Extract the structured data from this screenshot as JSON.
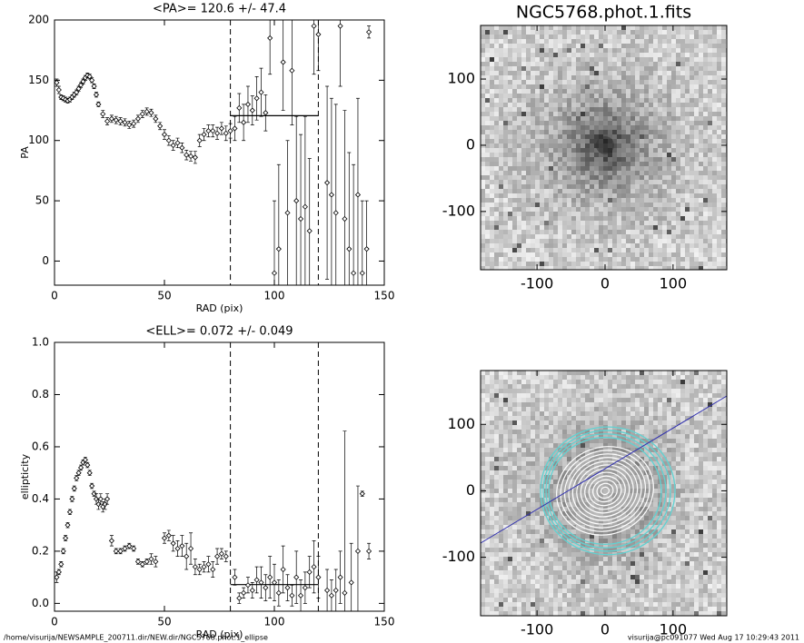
{
  "chart_data": [
    {
      "type": "scatter",
      "title": "<PA>= 120.6 +/-  47.4",
      "x_label": "RAD (pix)",
      "y_label": "PA",
      "xlim": [
        0,
        150
      ],
      "ylim": [
        -20,
        200
      ],
      "xticks": [
        0,
        50,
        100,
        150
      ],
      "yticks": [
        0,
        50,
        100,
        150,
        200
      ],
      "vlines": [
        80,
        120
      ],
      "mean": 120.6,
      "x": [
        1,
        2,
        3,
        4,
        5,
        6,
        7,
        8,
        9,
        10,
        11,
        12,
        13,
        14,
        15,
        16,
        17,
        18,
        19,
        20,
        22,
        24,
        26,
        28,
        30,
        32,
        34,
        36,
        38,
        40,
        42,
        44,
        46,
        48,
        50,
        52,
        54,
        56,
        58,
        60,
        62,
        64,
        66,
        68,
        70,
        72,
        74,
        76,
        78,
        80,
        82,
        84,
        86,
        88,
        90,
        92,
        94,
        96,
        98,
        100,
        102,
        104,
        106,
        108,
        110,
        112,
        114,
        116,
        118,
        120,
        124,
        126,
        128,
        130,
        132,
        134,
        136,
        138,
        140,
        142,
        143
      ],
      "values": [
        148,
        142,
        136,
        135,
        134,
        133,
        134,
        136,
        138,
        140,
        143,
        146,
        149,
        152,
        154,
        153,
        150,
        145,
        138,
        130,
        122,
        116,
        118,
        117,
        116,
        115,
        113,
        114,
        118,
        122,
        124,
        123,
        118,
        112,
        105,
        100,
        96,
        98,
        94,
        88,
        87,
        86,
        100,
        105,
        108,
        108,
        106,
        110,
        106,
        108,
        110,
        127,
        115,
        130,
        125,
        135,
        140,
        123,
        185,
        -10,
        10,
        165,
        40,
        158,
        50,
        35,
        45,
        25,
        195,
        188,
        65,
        55,
        40,
        195,
        35,
        10,
        -10,
        55,
        -10,
        10,
        190
      ],
      "errors": [
        3,
        3,
        2,
        2,
        2,
        2,
        2,
        2,
        2,
        2,
        2,
        2,
        2,
        2,
        2,
        2,
        2,
        2,
        2,
        2,
        3,
        3,
        3,
        3,
        3,
        3,
        3,
        3,
        3,
        3,
        3,
        3,
        3,
        3,
        4,
        4,
        4,
        4,
        4,
        4,
        4,
        5,
        5,
        5,
        5,
        5,
        5,
        5,
        6,
        6,
        10,
        12,
        15,
        15,
        12,
        18,
        20,
        15,
        30,
        60,
        70,
        40,
        60,
        45,
        70,
        70,
        75,
        60,
        40,
        30,
        80,
        80,
        90,
        50,
        90,
        80,
        90,
        80,
        60,
        40,
        5
      ]
    },
    {
      "type": "scatter",
      "title": "<ELL>= 0.072 +/-  0.049",
      "x_label": "RAD (pix)",
      "y_label": "ellipticity",
      "xlim": [
        0,
        150
      ],
      "ylim": [
        -0.03,
        1.0
      ],
      "xticks": [
        0,
        50,
        100,
        150
      ],
      "yticks": [
        {
          "value": 0,
          "label": "0.0"
        },
        0.2,
        0.4,
        0.6,
        0.8,
        {
          "value": 1,
          "label": "1.0"
        }
      ],
      "vlines": [
        80,
        120
      ],
      "mean": 0.072,
      "x": [
        1,
        2,
        3,
        4,
        5,
        6,
        7,
        8,
        9,
        10,
        11,
        12,
        13,
        14,
        15,
        16,
        17,
        18,
        19,
        20,
        21,
        22,
        23,
        24,
        26,
        28,
        30,
        32,
        34,
        36,
        38,
        40,
        42,
        44,
        46,
        50,
        52,
        54,
        56,
        58,
        60,
        62,
        64,
        66,
        68,
        70,
        72,
        74,
        76,
        78,
        82,
        84,
        86,
        88,
        90,
        92,
        94,
        96,
        98,
        100,
        102,
        104,
        106,
        108,
        110,
        112,
        114,
        116,
        118,
        120,
        124,
        126,
        128,
        130,
        132,
        135,
        138,
        140,
        143
      ],
      "values": [
        0.1,
        0.12,
        0.15,
        0.2,
        0.25,
        0.3,
        0.35,
        0.4,
        0.44,
        0.48,
        0.5,
        0.52,
        0.54,
        0.55,
        0.53,
        0.5,
        0.45,
        0.42,
        0.4,
        0.38,
        0.4,
        0.37,
        0.38,
        0.4,
        0.24,
        0.2,
        0.2,
        0.21,
        0.22,
        0.21,
        0.16,
        0.15,
        0.16,
        0.17,
        0.16,
        0.25,
        0.26,
        0.23,
        0.21,
        0.22,
        0.18,
        0.21,
        0.14,
        0.13,
        0.14,
        0.15,
        0.13,
        0.18,
        0.19,
        0.18,
        0.1,
        0.02,
        0.04,
        0.07,
        0.05,
        0.09,
        0.08,
        0.06,
        0.1,
        0.08,
        0.04,
        0.13,
        0.06,
        0.03,
        0.1,
        0.03,
        0.06,
        0.12,
        0.14,
        0.1,
        0.05,
        0.03,
        0.05,
        0.1,
        0.04,
        0.08,
        0.2,
        0.42,
        0.2
      ],
      "errors": [
        0.02,
        0.01,
        0.01,
        0.01,
        0.01,
        0.01,
        0.01,
        0.01,
        0.01,
        0.01,
        0.01,
        0.01,
        0.01,
        0.01,
        0.01,
        0.01,
        0.01,
        0.01,
        0.02,
        0.02,
        0.02,
        0.02,
        0.02,
        0.02,
        0.02,
        0.01,
        0.01,
        0.01,
        0.01,
        0.01,
        0.01,
        0.01,
        0.01,
        0.02,
        0.02,
        0.02,
        0.02,
        0.03,
        0.03,
        0.04,
        0.05,
        0.06,
        0.03,
        0.02,
        0.02,
        0.03,
        0.03,
        0.03,
        0.02,
        0.02,
        0.03,
        0.02,
        0.02,
        0.03,
        0.03,
        0.05,
        0.06,
        0.05,
        0.08,
        0.07,
        0.05,
        0.09,
        0.05,
        0.04,
        0.1,
        0.06,
        0.06,
        0.06,
        0.1,
        0.08,
        0.08,
        0.06,
        0.08,
        0.1,
        0.62,
        0.15,
        0.25,
        0.01,
        0.03
      ]
    },
    {
      "type": "image",
      "title": "NGC5768.phot.1.fits",
      "xlim": [
        -183,
        179
      ],
      "ylim": [
        -188,
        181
      ],
      "xticks": [
        -100,
        0,
        100
      ],
      "yticks": [
        -100,
        0,
        100
      ]
    },
    {
      "type": "image",
      "xlim": [
        -183,
        179
      ],
      "ylim": [
        -188,
        181
      ],
      "xticks": [
        -100,
        0,
        100
      ],
      "yticks": [
        -100,
        0,
        100
      ]
    }
  ],
  "footer": {
    "left": "/home/visurija/NEWSAMPLE_200711.dir/NEW.dir/NGC5768.phot.1_ellipse",
    "right": "visurija@pc091077  Wed Aug 17 10:29:43 2011"
  }
}
